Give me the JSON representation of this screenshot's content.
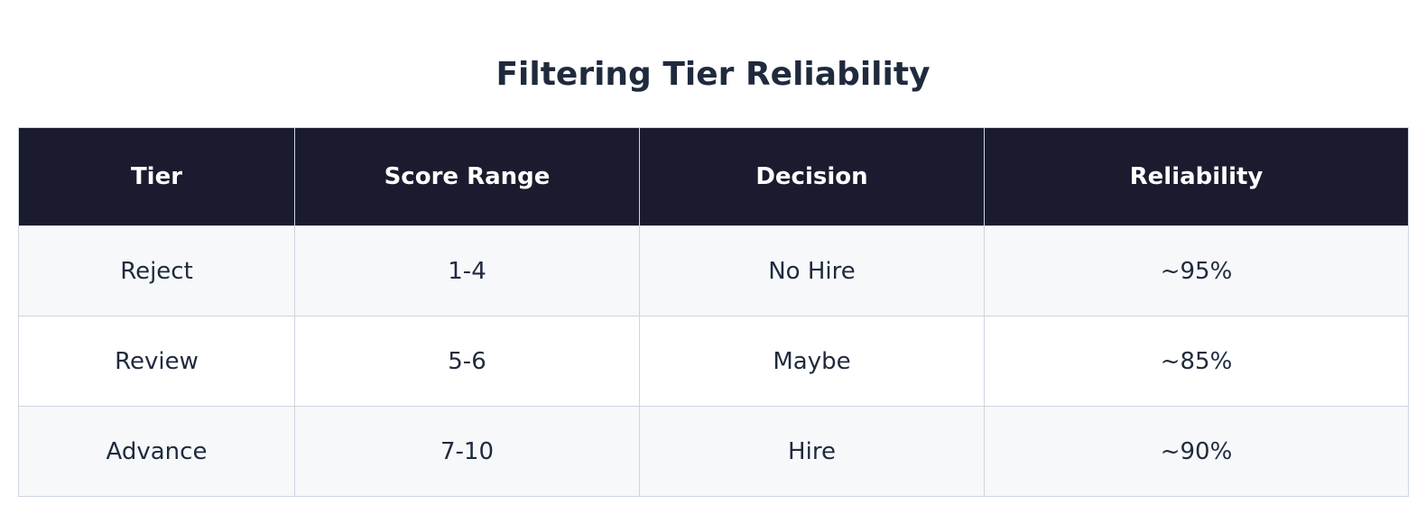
{
  "header": {
    "title": "Filtering Tier Reliability"
  },
  "table": {
    "columns": [
      "Tier",
      "Score Range",
      "Decision",
      "Reliability"
    ],
    "rows": [
      [
        "Reject",
        "1-4",
        "No Hire",
        "~95%"
      ],
      [
        "Review",
        "5-6",
        "Maybe",
        "~85%"
      ],
      [
        "Advance",
        "7-10",
        "Hire",
        "~90%"
      ]
    ]
  }
}
